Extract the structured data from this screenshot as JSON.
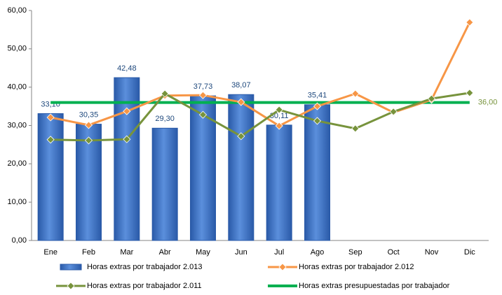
{
  "chart_data": {
    "type": "bar-line",
    "categories": [
      "Ene",
      "Feb",
      "Mar",
      "Abr",
      "May",
      "Jun",
      "Jul",
      "Ago",
      "Sep",
      "Oct",
      "Nov",
      "Dic"
    ],
    "ylim": [
      0,
      60
    ],
    "yticks": [
      {
        "value": 0,
        "label": "0,00"
      },
      {
        "value": 10,
        "label": "10,00"
      },
      {
        "value": 20,
        "label": "20,00"
      },
      {
        "value": 30,
        "label": "30,00"
      },
      {
        "value": 40,
        "label": "40,00"
      },
      {
        "value": 50,
        "label": "50,00"
      },
      {
        "value": 60,
        "label": "60,00"
      }
    ],
    "grid": false,
    "legend": "bottom",
    "series": [
      {
        "name": "Horas extras por trabajador 2.013",
        "type": "bar",
        "color": "#3a6fc4",
        "values": [
          33.1,
          30.35,
          42.48,
          29.3,
          37.73,
          38.07,
          30.11,
          35.41,
          null,
          null,
          null,
          null
        ],
        "value_labels": [
          "33,10",
          "30,35",
          "42,48",
          "29,30",
          "37,73",
          "38,07",
          "30,11",
          "35,41",
          null,
          null,
          null,
          null
        ]
      },
      {
        "name": "Horas extras por trabajador 2.012",
        "type": "line",
        "color": "#f79646",
        "values": [
          32.1,
          30.1,
          33.7,
          37.8,
          37.9,
          36.1,
          29.9,
          35.0,
          38.3,
          33.4,
          36.7,
          56.9
        ]
      },
      {
        "name": "Horas extras por trabajador 2.011",
        "type": "line",
        "color": "#77933c",
        "values": [
          26.3,
          26.1,
          26.4,
          38.3,
          32.8,
          27.2,
          34.1,
          31.2,
          29.2,
          33.6,
          37.0,
          38.5
        ]
      },
      {
        "name": "Horas extras presupuestadas por trabajador",
        "type": "flat",
        "color": "#00b050",
        "values": [
          36,
          36,
          36,
          36,
          36,
          36,
          36,
          36,
          36,
          36,
          36,
          36
        ],
        "value_labels": [
          null,
          null,
          null,
          null,
          null,
          null,
          null,
          null,
          null,
          null,
          null,
          "36,00"
        ]
      }
    ]
  }
}
